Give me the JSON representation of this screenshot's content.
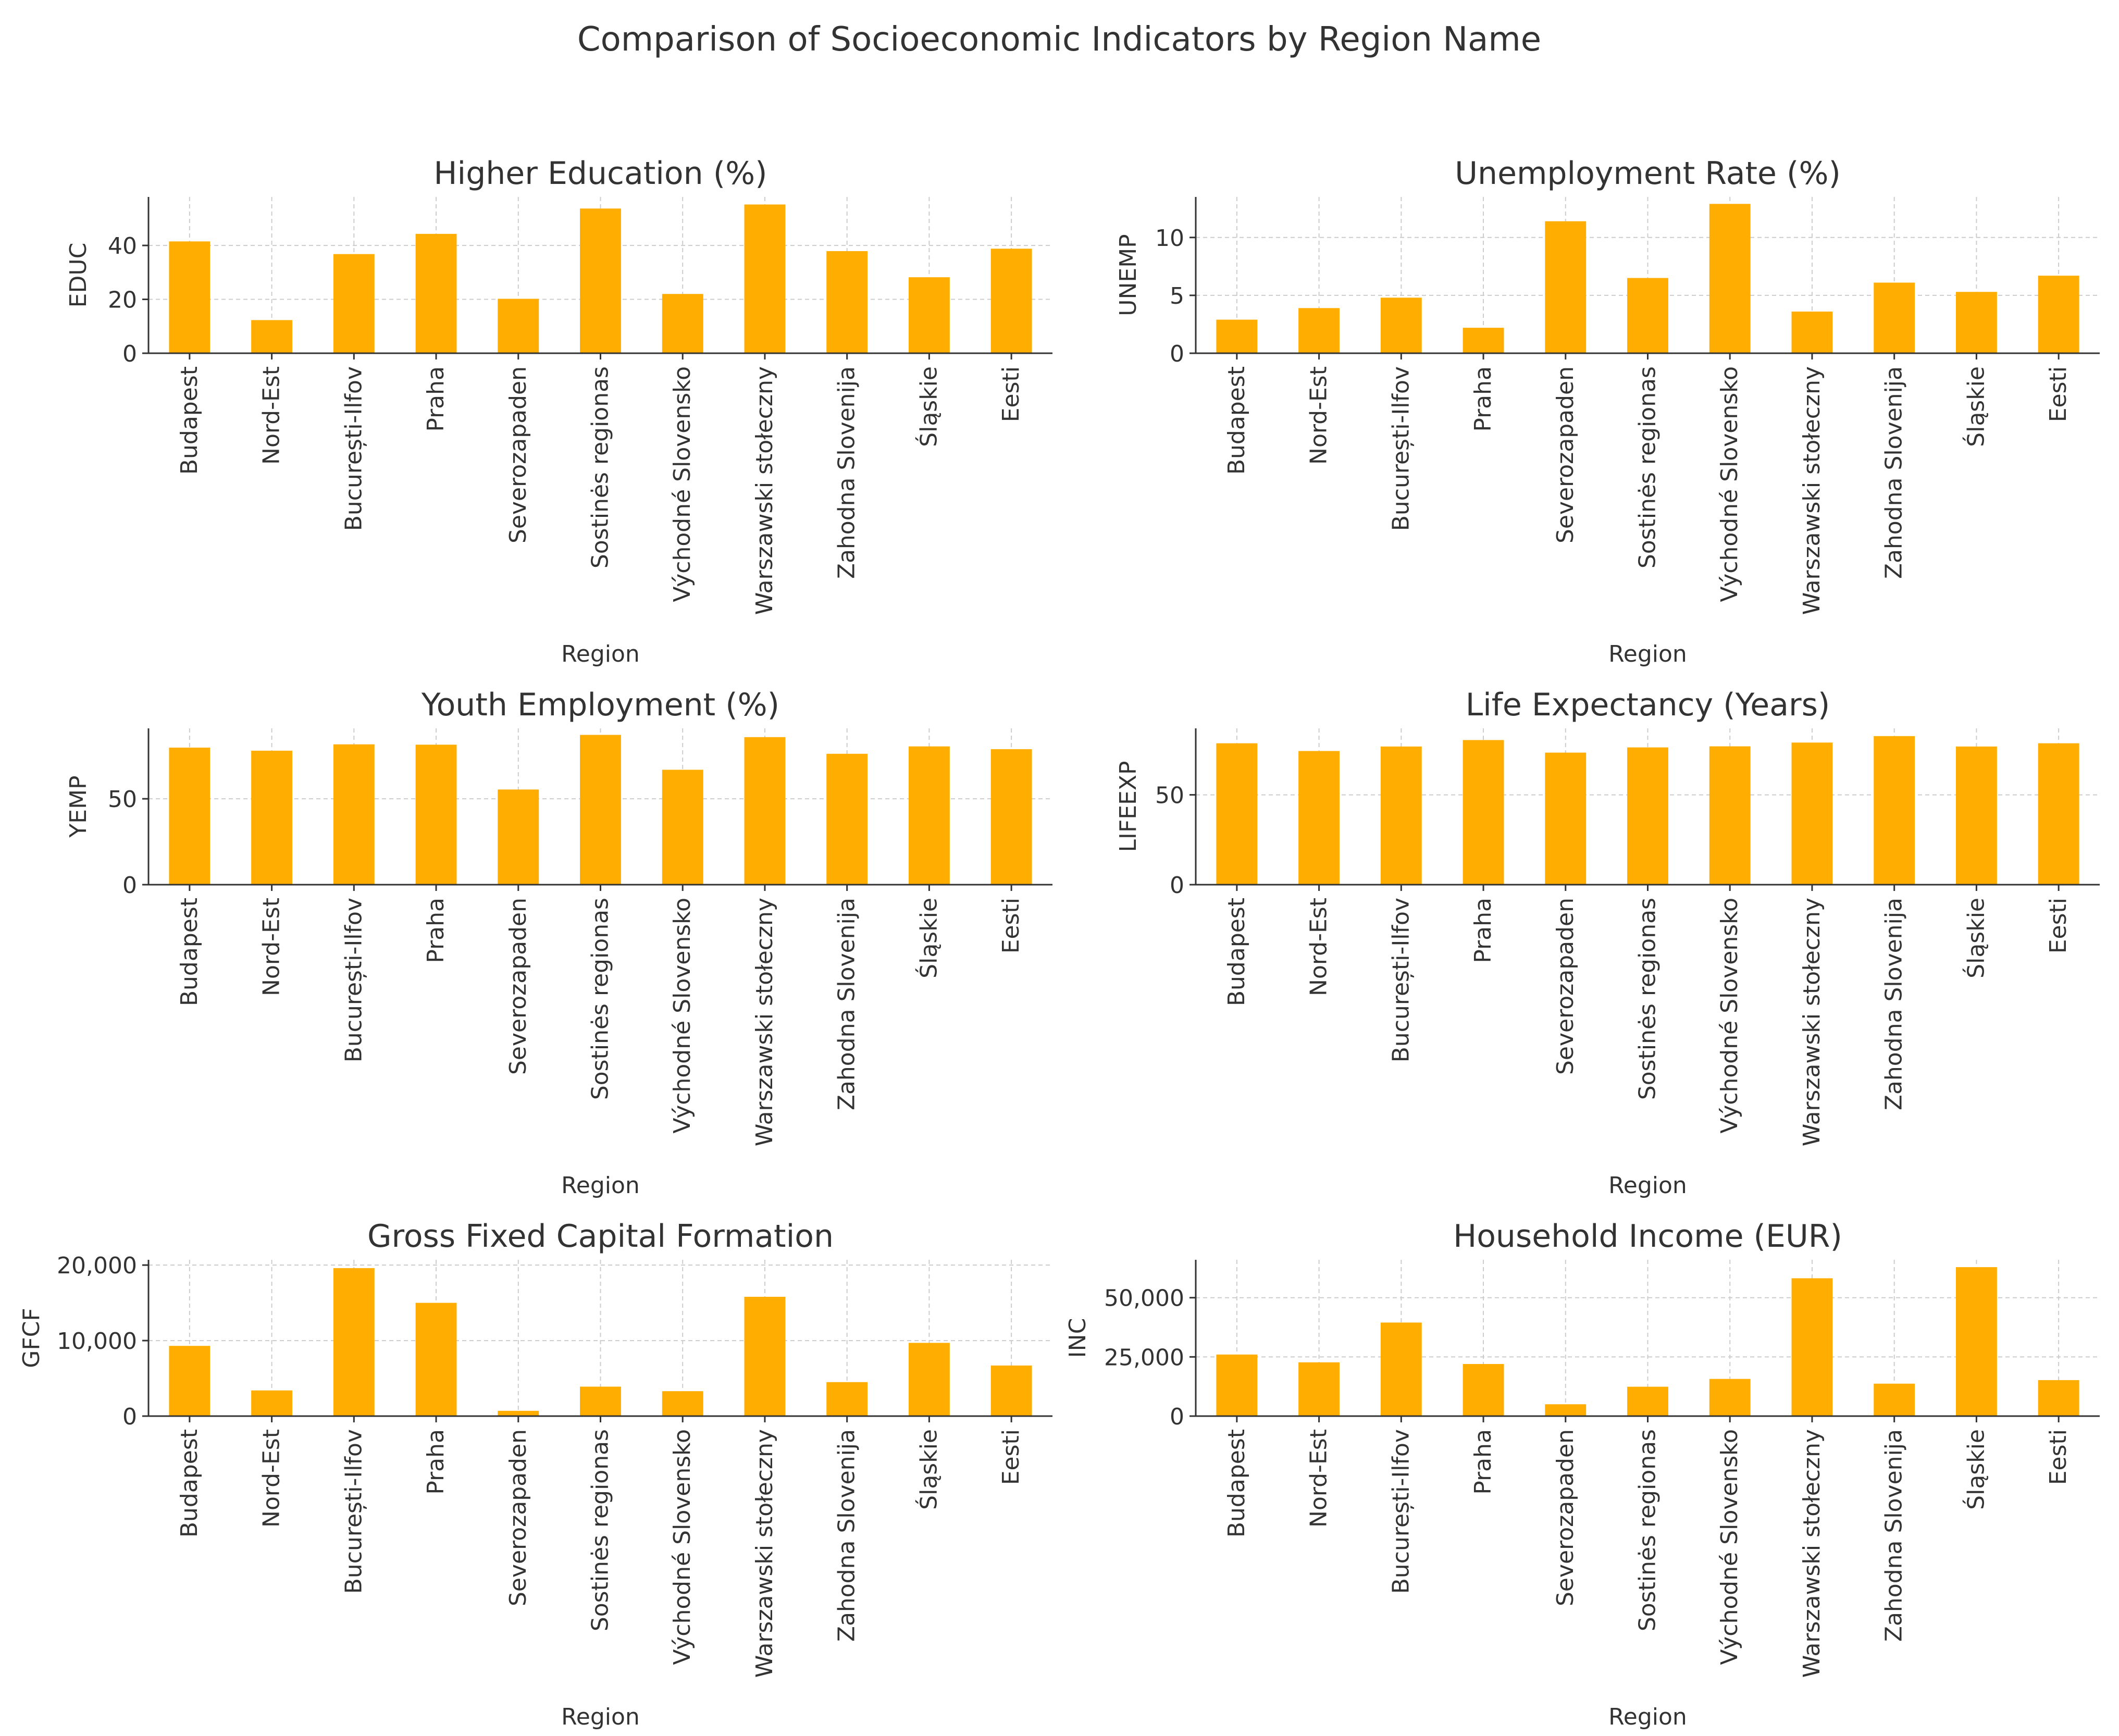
{
  "figure_title": "Comparison of Socioeconomic Indicators by Region Name",
  "colors": {
    "bar": "#FFAD00",
    "axis": "#333333",
    "grid": "#cccccc"
  },
  "chart_data": [
    {
      "type": "bar",
      "title": "Higher Education (%)",
      "xlabel": "Region",
      "ylabel": "EDUC",
      "ylim": [
        0,
        58
      ],
      "yticks": [
        0,
        20,
        40
      ],
      "categories": [
        "Budapest",
        "Nord-Est",
        "București-Ilfov",
        "Praha",
        "Severozapaden",
        "Sostinės regionas",
        "Východné Slovensko",
        "Warszawski stołeczny",
        "Zahodna Slovenija",
        "Śląskie",
        "Eesti"
      ],
      "values": [
        41.5,
        12.3,
        36.8,
        44.3,
        20.2,
        53.7,
        22.0,
        55.2,
        37.9,
        28.2,
        38.8
      ]
    },
    {
      "type": "bar",
      "title": "Unemployment Rate (%)",
      "xlabel": "Region",
      "ylabel": "UNEMP",
      "ylim": [
        0,
        13.5
      ],
      "yticks": [
        0,
        5,
        10
      ],
      "categories": [
        "Budapest",
        "Nord-Est",
        "București-Ilfov",
        "Praha",
        "Severozapaden",
        "Sostinės regionas",
        "Východné Slovensko",
        "Warszawski stołeczny",
        "Zahodna Slovenija",
        "Śląskie",
        "Eesti"
      ],
      "values": [
        2.9,
        3.9,
        4.8,
        2.2,
        11.4,
        6.5,
        12.9,
        3.6,
        6.1,
        5.3,
        6.7
      ]
    },
    {
      "type": "bar",
      "title": "Youth Employment (%)",
      "xlabel": "Region",
      "ylabel": "YEMP",
      "ylim": [
        0,
        91
      ],
      "yticks": [
        0,
        50
      ],
      "categories": [
        "Budapest",
        "Nord-Est",
        "București-Ilfov",
        "Praha",
        "Severozapaden",
        "Sostinės regionas",
        "Východné Slovensko",
        "Warszawski stołeczny",
        "Zahodna Slovenija",
        "Śląskie",
        "Eesti"
      ],
      "values": [
        79.8,
        78.0,
        81.7,
        81.5,
        55.4,
        87.2,
        66.9,
        85.9,
        76.2,
        80.5,
        78.9
      ]
    },
    {
      "type": "bar",
      "title": "Life Expectancy (Years)",
      "xlabel": "Region",
      "ylabel": "LIFEEXP",
      "ylim": [
        0,
        87
      ],
      "yticks": [
        0,
        50
      ],
      "categories": [
        "Budapest",
        "Nord-Est",
        "București-Ilfov",
        "Praha",
        "Severozapaden",
        "Sostinės regionas",
        "Východné Slovensko",
        "Warszawski stołeczny",
        "Zahodna Slovenija",
        "Śląskie",
        "Eesti"
      ],
      "values": [
        78.7,
        74.4,
        76.9,
        80.5,
        73.5,
        76.4,
        77.0,
        79.1,
        82.7,
        76.9,
        78.7
      ]
    },
    {
      "type": "bar",
      "title": "Gross Fixed Capital Formation",
      "xlabel": "Region",
      "ylabel": "GFCF",
      "ylim": [
        0,
        20700
      ],
      "yticks": [
        0,
        10000,
        20000
      ],
      "categories": [
        "Budapest",
        "Nord-Est",
        "București-Ilfov",
        "Praha",
        "Severozapaden",
        "Sostinės regionas",
        "Východné Slovensko",
        "Warszawski stołeczny",
        "Zahodna Slovenija",
        "Śląskie",
        "Eesti"
      ],
      "values": [
        9300,
        3400,
        19600,
        15000,
        700,
        3900,
        3300,
        15800,
        4500,
        9700,
        6700
      ]
    },
    {
      "type": "bar",
      "title": "Household Income (EUR)",
      "xlabel": "Region",
      "ylabel": "INC",
      "ylim": [
        0,
        66000
      ],
      "yticks": [
        0,
        25000,
        50000
      ],
      "categories": [
        "Budapest",
        "Nord-Est",
        "București-Ilfov",
        "Praha",
        "Severozapaden",
        "Sostinės regionas",
        "Východné Slovensko",
        "Warszawski stołeczny",
        "Zahodna Slovenija",
        "Śląskie",
        "Eesti"
      ],
      "values": [
        26000,
        22700,
        39500,
        22000,
        5000,
        12400,
        15700,
        58200,
        13700,
        62900,
        15200
      ]
    }
  ]
}
